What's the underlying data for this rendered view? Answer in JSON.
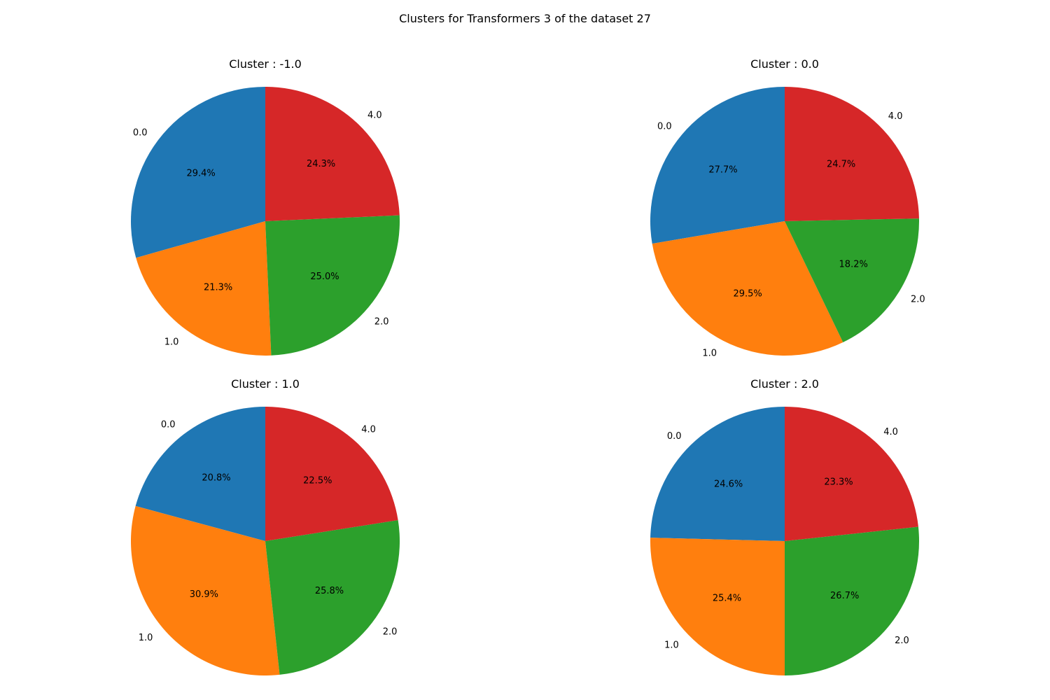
{
  "figure": {
    "title": "Clusters for Transformers 3 of the dataset 27"
  },
  "colors": {
    "0.0": "#1f77b4",
    "1.0": "#ff7f0e",
    "2.0": "#2ca02c",
    "4.0": "#d62728"
  },
  "chart_data": [
    {
      "type": "pie",
      "title": "Cluster : -1.0",
      "categories": [
        "0.0",
        "1.0",
        "2.0",
        "4.0"
      ],
      "values": [
        29.4,
        21.3,
        25.0,
        24.3
      ]
    },
    {
      "type": "pie",
      "title": "Cluster : 0.0",
      "categories": [
        "0.0",
        "1.0",
        "2.0",
        "4.0"
      ],
      "values": [
        27.7,
        29.5,
        18.2,
        24.7
      ]
    },
    {
      "type": "pie",
      "title": "Cluster : 1.0",
      "categories": [
        "0.0",
        "1.0",
        "2.0",
        "4.0"
      ],
      "values": [
        20.8,
        30.9,
        25.8,
        22.5
      ]
    },
    {
      "type": "pie",
      "title": "Cluster : 2.0",
      "categories": [
        "0.0",
        "1.0",
        "2.0",
        "4.0"
      ],
      "values": [
        24.6,
        25.4,
        26.7,
        23.3
      ]
    }
  ]
}
